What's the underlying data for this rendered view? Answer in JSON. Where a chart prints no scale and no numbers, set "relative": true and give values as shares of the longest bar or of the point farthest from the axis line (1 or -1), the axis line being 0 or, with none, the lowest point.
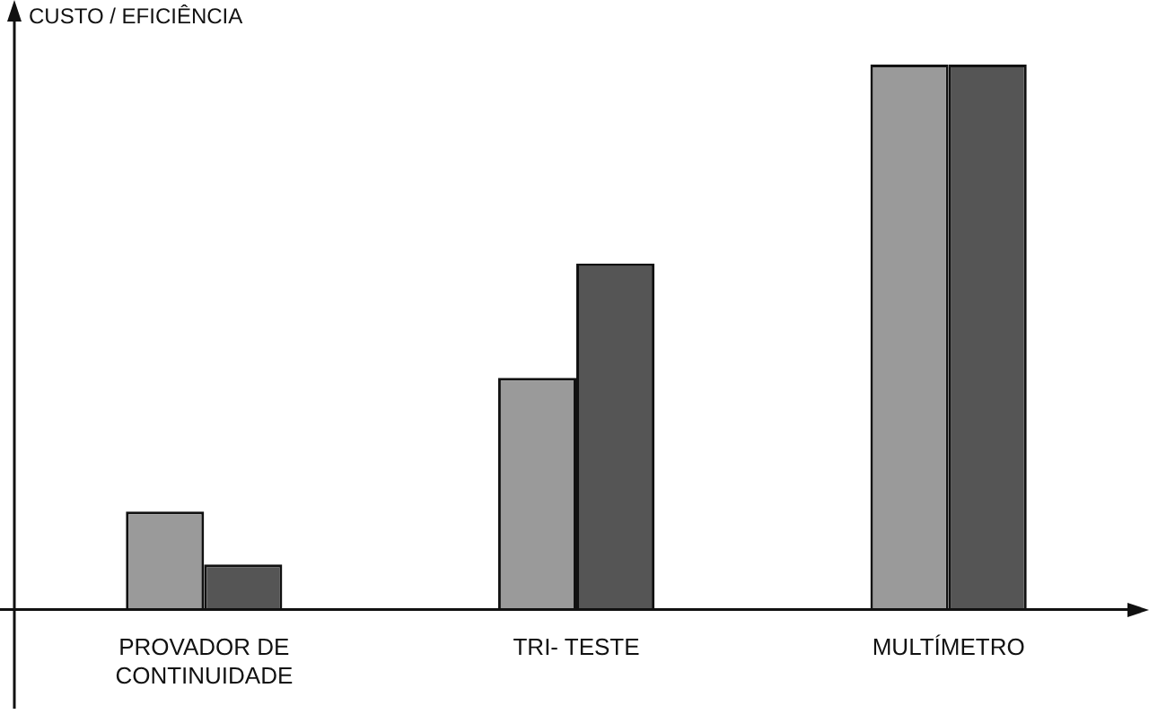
{
  "chart_data": {
    "type": "bar",
    "ylabel": "CUSTO / EFICIÊNCIA",
    "relative": true,
    "categories": [
      "PROVADOR DE CONTINUIDADE",
      "TRI- TESTE",
      "MULTÍMETRO"
    ],
    "series": [
      {
        "color": "#9a9a9a",
        "values": [
          0.18,
          0.425,
          1
        ]
      },
      {
        "color": "#555555",
        "values": [
          0.083,
          0.635,
          1
        ]
      }
    ],
    "legend": false,
    "grid": false
  }
}
